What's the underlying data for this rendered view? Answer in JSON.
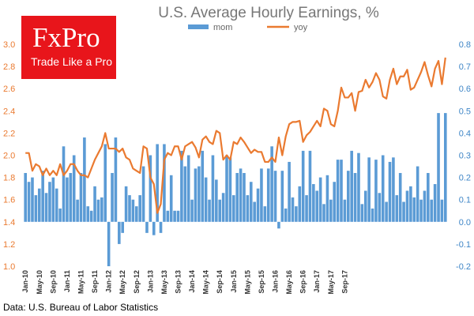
{
  "chart_data": {
    "type": "bar",
    "title": "U.S. Average Hourly  Earnings,  %",
    "source": "Data: U.S. Bureau of Labor Statistics",
    "legend_position": "top-center",
    "x_tick_labels": [
      "Jan-10",
      "May-10",
      "Sep-10",
      "Jan-11",
      "May-11",
      "Sep-11",
      "Jan-12",
      "May-12",
      "Sep-12",
      "Jan-13",
      "May-13",
      "Sep-13",
      "Jan-14",
      "May-14",
      "Sep-14",
      "Jan-15",
      "May-15",
      "Sep-15",
      "Jan-16",
      "May-16",
      "Sep-16",
      "Jan-17",
      "May-17",
      "Sep-17"
    ],
    "y_left": {
      "min": 1.0,
      "max": 3.0,
      "ticks": [
        "1.0",
        "1.2",
        "1.4",
        "1.6",
        "1.8",
        "2.0",
        "2.2",
        "2.4",
        "2.6",
        "2.8",
        "3.0"
      ],
      "color": "#ea7a30"
    },
    "y_right": {
      "min": -0.2,
      "max": 0.8,
      "ticks": [
        "-0.2",
        "-0.1",
        "0.0",
        "0.1",
        "0.2",
        "0.3",
        "0.4",
        "0.5",
        "0.6",
        "0.7",
        "0.8"
      ],
      "color": "#3f86c7"
    },
    "series": [
      {
        "name": "mom",
        "type": "bar",
        "axis": "right",
        "color": "#5b9bd5",
        "values": [
          0.22,
          0.18,
          0.2,
          0.12,
          0.15,
          0.23,
          0.13,
          0.18,
          0.2,
          0.15,
          0.06,
          0.34,
          0.2,
          0.22,
          0.3,
          0.1,
          0.22,
          0.38,
          0.07,
          0.05,
          0.16,
          0.1,
          0.11,
          0.35,
          -0.2,
          0.22,
          0.38,
          -0.1,
          -0.05,
          0.16,
          0.12,
          0.1,
          0.07,
          0.12,
          0.25,
          -0.05,
          0.3,
          -0.06,
          0.35,
          -0.05,
          0.35,
          0.05,
          0.21,
          0.05,
          0.05,
          0.32,
          0.25,
          0.3,
          0.1,
          0.24,
          0.25,
          0.32,
          0.2,
          0.1,
          0.3,
          0.19,
          0.1,
          0.13,
          0.3,
          0.29,
          0.12,
          0.22,
          0.24,
          0.22,
          0.12,
          0.18,
          0.09,
          0.15,
          0.24,
          0.07,
          0.24,
          0.34,
          0.23,
          -0.03,
          0.23,
          0.06,
          0.27,
          0.11,
          0.07,
          0.16,
          0.32,
          0.12,
          0.32,
          0.17,
          0.14,
          0.2,
          0.08,
          0.21,
          0.1,
          0.18,
          0.28,
          0.28,
          0.1,
          0.23,
          0.32,
          0.22,
          0.31,
          0.08,
          0.14,
          0.29,
          0.06,
          0.28,
          0.13,
          0.3,
          0.09,
          0.27,
          0.29,
          0.12,
          0.22,
          0.09,
          0.14,
          0.16,
          0.11,
          0.25,
          0.1,
          0.14,
          0.22,
          0.1,
          0.17,
          0.49,
          0.1,
          0.49
        ]
      },
      {
        "name": "yoy",
        "type": "line",
        "axis": "left",
        "color": "#ea7a30",
        "values": [
          2.02,
          2.02,
          1.86,
          1.92,
          1.9,
          1.82,
          1.88,
          1.82,
          1.86,
          1.82,
          1.92,
          1.82,
          1.86,
          1.92,
          1.92,
          1.86,
          1.82,
          1.82,
          1.8,
          1.88,
          1.96,
          2.02,
          2.08,
          2.2,
          2.06,
          2.06,
          2.06,
          2.03,
          2.06,
          1.98,
          1.96,
          1.88,
          1.86,
          1.84,
          2.08,
          2.06,
          1.8,
          1.74,
          1.48,
          1.56,
          1.96,
          2.02,
          2.0,
          2.08,
          2.08,
          1.96,
          2.08,
          2.1,
          2.12,
          2.07,
          1.98,
          2.14,
          2.17,
          2.12,
          2.1,
          2.22,
          2.2,
          1.96,
          2.0,
          1.96,
          2.12,
          2.1,
          2.16,
          2.12,
          2.07,
          2.02,
          2.05,
          2.03,
          2.03,
          1.94,
          1.94,
          1.98,
          1.94,
          2.16,
          2.0,
          2.17,
          2.28,
          2.3,
          2.3,
          2.31,
          2.12,
          2.18,
          2.21,
          2.26,
          2.31,
          2.26,
          2.42,
          2.4,
          2.28,
          2.26,
          2.4,
          2.61,
          2.52,
          2.52,
          2.56,
          2.4,
          2.57,
          2.58,
          2.68,
          2.61,
          2.66,
          2.74,
          2.68,
          2.53,
          2.51,
          2.68,
          2.78,
          2.64,
          2.71,
          2.71,
          2.77,
          2.59,
          2.61,
          2.68,
          2.75,
          2.84,
          2.72,
          2.62,
          2.78,
          2.85,
          2.64,
          2.88
        ]
      }
    ]
  },
  "logo": {
    "name": "FxPro",
    "tagline": "Trade Like a Pro",
    "color": "#e8151b"
  }
}
